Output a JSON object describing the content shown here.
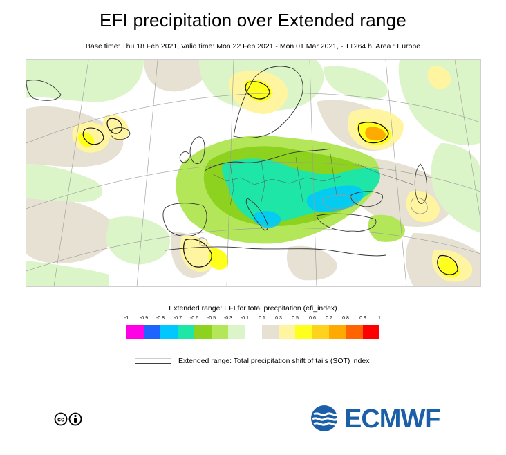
{
  "title": "EFI precipitation over Extended range",
  "subtitle": "Base time: Thu 18 Feb 2021, Valid time: Mon 22 Feb 2021 - Mon 01 Mar 2021, - T+264 h, Area : Europe",
  "legend": {
    "title": "Extended range: EFI for total precpitation (efi_index)",
    "ticks": [
      "-1",
      "-0.9",
      "-0.8",
      "-0.7",
      "-0.6",
      "-0.5",
      "-0.3",
      "-0.1",
      "0.1",
      "0.3",
      "0.5",
      "0.6",
      "0.7",
      "0.8",
      "0.9",
      "1"
    ],
    "colors": {
      "neg_100_090": "#ff00e6",
      "neg_090_080": "#1e64ff",
      "neg_080_070": "#00c8ff",
      "neg_070_060": "#1ee6a6",
      "neg_060_050": "#8cd21e",
      "neg_050_030": "#b4e65a",
      "neg_030_010": "#dcf5c8",
      "pos_010_030": "#e6e1d2",
      "pos_030_050": "#fff5a0",
      "pos_050_060": "#ffff1e",
      "pos_060_070": "#ffd21e",
      "pos_070_080": "#ffaa00",
      "pos_080_090": "#ff6400",
      "pos_090_100": "#ff0000"
    }
  },
  "sot": {
    "label": "Extended range: Total precipitation shift of tails (SOT) index"
  },
  "logo": {
    "text": "ECMWF",
    "color": "#1a5fa8"
  }
}
